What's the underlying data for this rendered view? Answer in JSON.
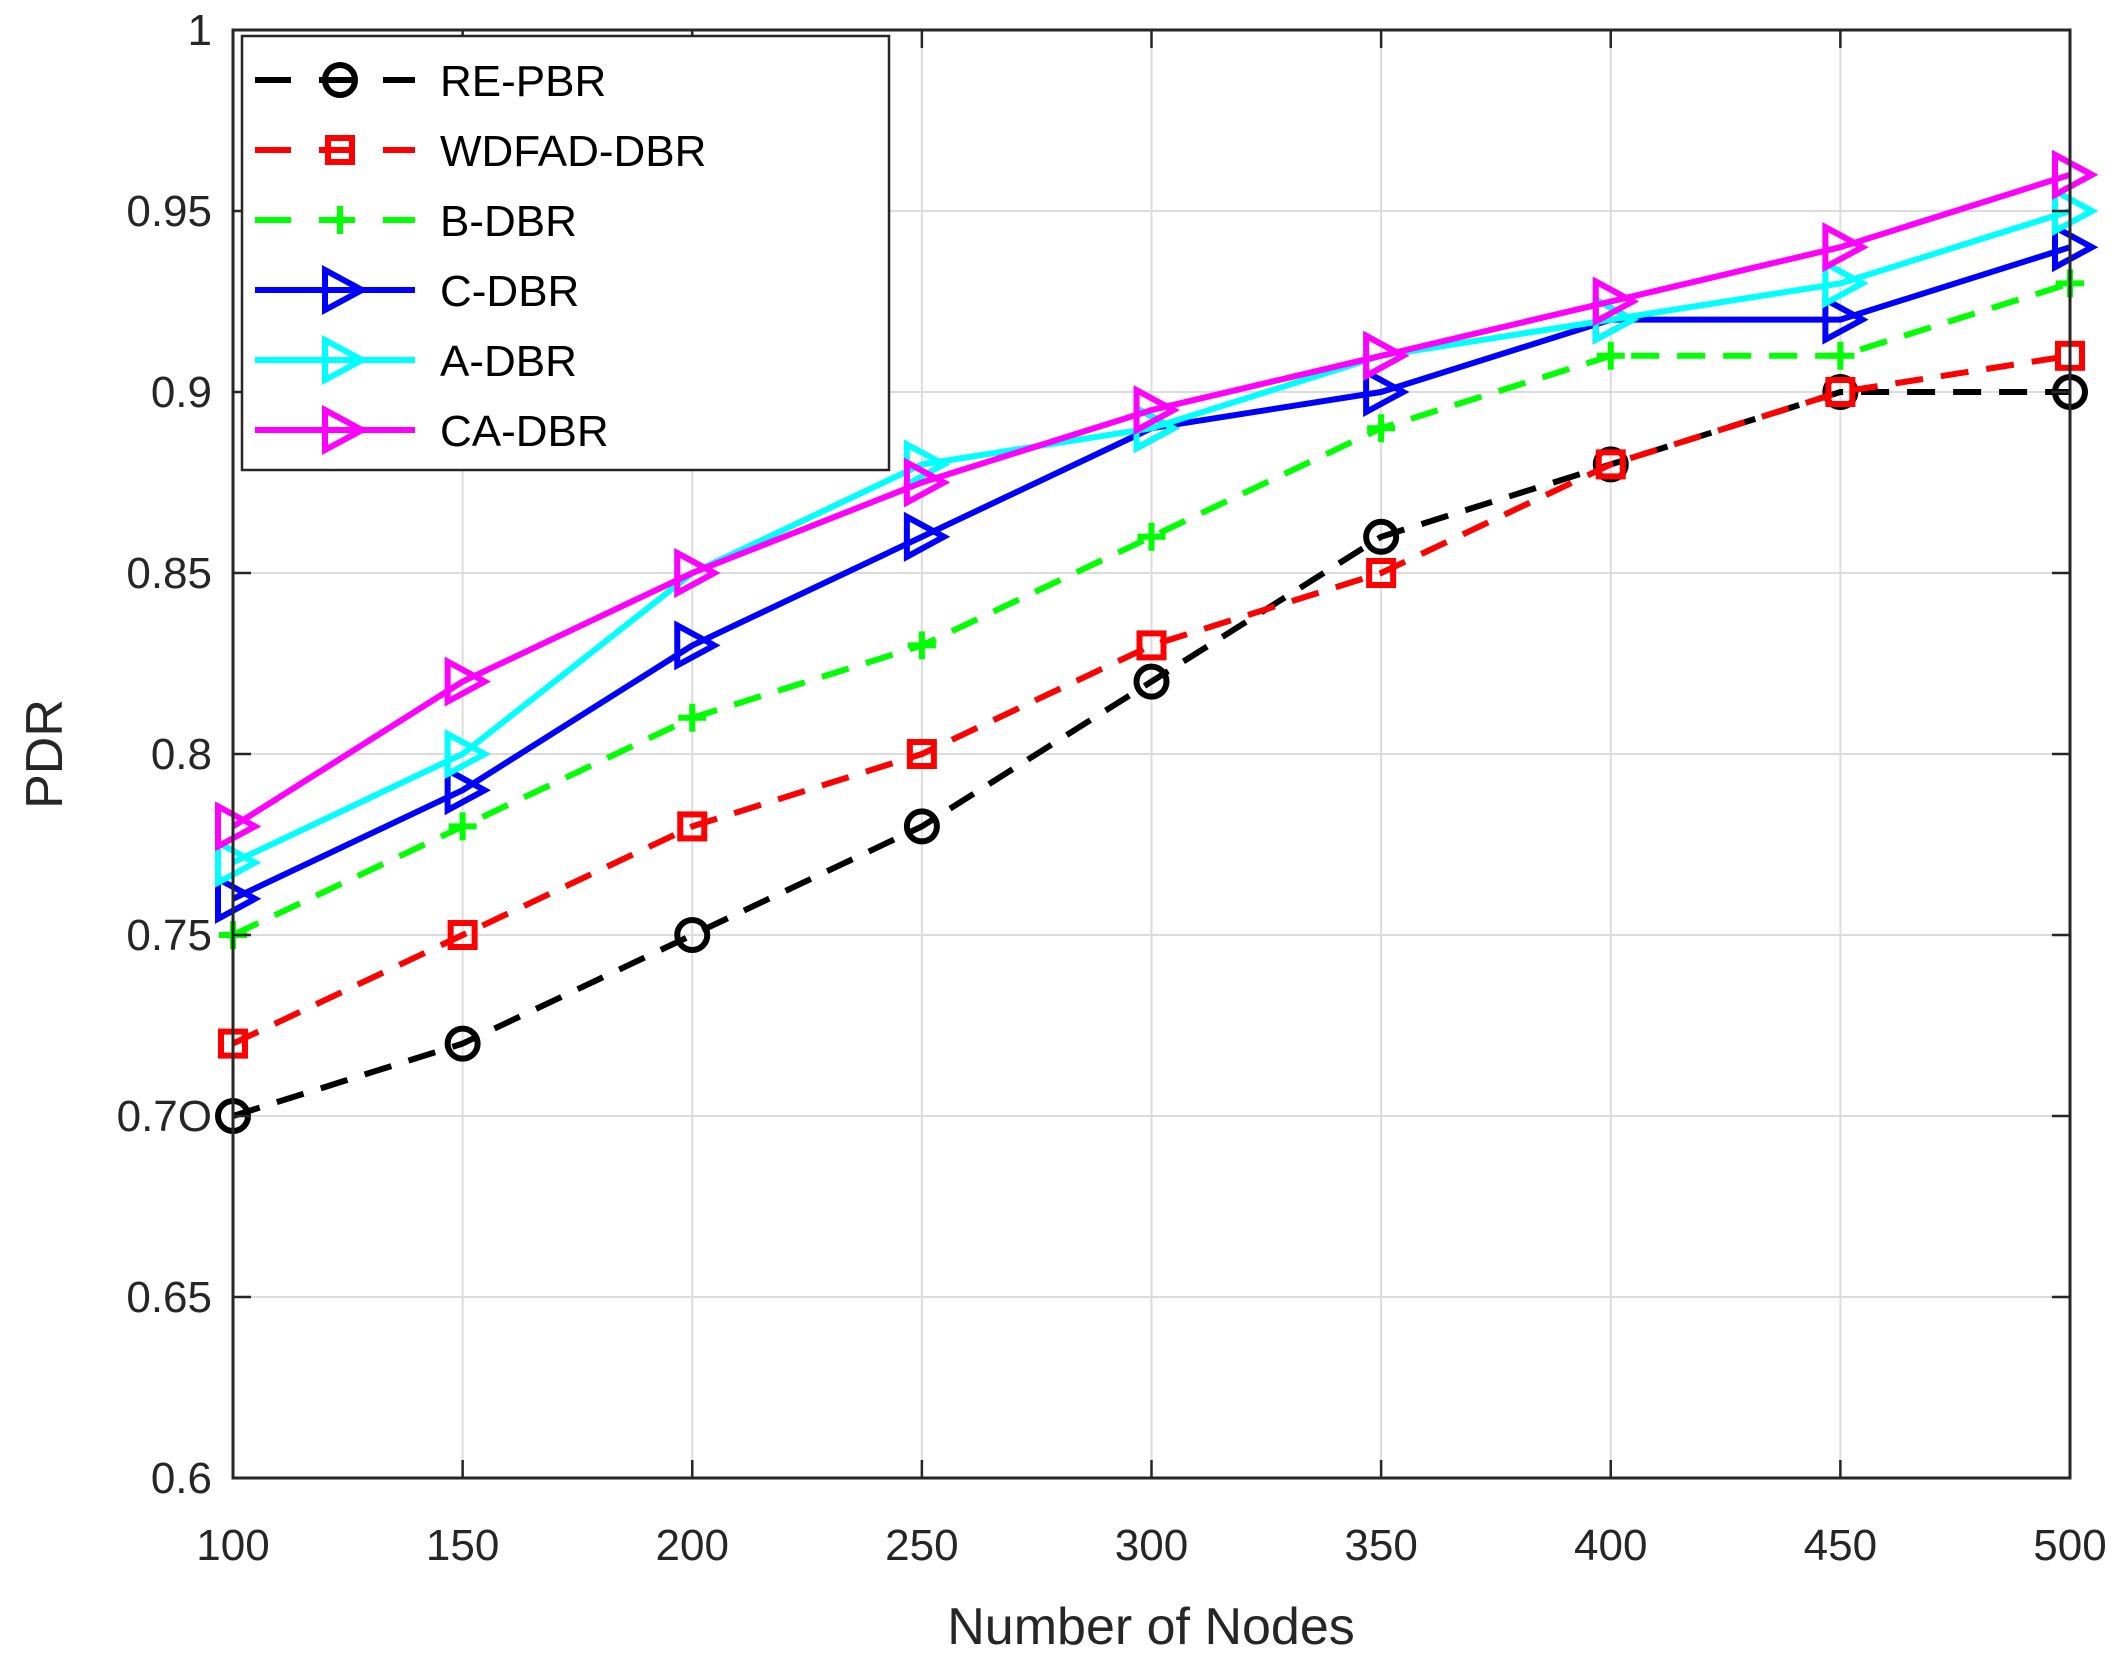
{
  "chart_data": {
    "type": "line",
    "title": "",
    "xlabel": "Number of Nodes",
    "ylabel": "PDR",
    "x": [
      100,
      150,
      200,
      250,
      300,
      350,
      400,
      450,
      500
    ],
    "xlim": [
      100,
      500
    ],
    "ylim": [
      0.6,
      1.0
    ],
    "xticks": [
      100,
      150,
      200,
      250,
      300,
      350,
      400,
      450,
      500
    ],
    "xtick_labels": [
      "100",
      "150",
      "200",
      "250",
      "300",
      "350",
      "400",
      "450",
      "500"
    ],
    "yticks": [
      0.6,
      0.65,
      0.7,
      0.75,
      0.8,
      0.85,
      0.9,
      0.95,
      1.0
    ],
    "ytick_labels": [
      "0.6",
      "0.65",
      "0.7O",
      "0.75",
      "0.8",
      "0.85",
      "0.9",
      "0.95",
      "1"
    ],
    "grid": true,
    "legend_position": "top-left",
    "series": [
      {
        "name": "RE-PBR",
        "color": "#000000",
        "dash": "dashed",
        "marker": "circle",
        "values": [
          0.7,
          0.72,
          0.75,
          0.78,
          0.82,
          0.86,
          0.88,
          0.9,
          0.9
        ]
      },
      {
        "name": "WDFAD-DBR",
        "color": "#ff0000",
        "dash": "dashed",
        "marker": "square",
        "values": [
          0.72,
          0.75,
          0.78,
          0.8,
          0.83,
          0.85,
          0.88,
          0.9,
          0.91
        ]
      },
      {
        "name": "B-DBR",
        "color": "#00ff00",
        "dash": "dashed",
        "marker": "plus",
        "values": [
          0.75,
          0.78,
          0.81,
          0.83,
          0.86,
          0.89,
          0.91,
          0.91,
          0.93
        ]
      },
      {
        "name": "C-DBR",
        "color": "#0000ff",
        "dash": "solid",
        "marker": "triangle-right",
        "values": [
          0.76,
          0.79,
          0.83,
          0.86,
          0.89,
          0.9,
          0.92,
          0.92,
          0.94
        ]
      },
      {
        "name": "A-DBR",
        "color": "#00ffff",
        "dash": "solid",
        "marker": "triangle-right",
        "values": [
          0.77,
          0.8,
          0.85,
          0.88,
          0.89,
          0.91,
          0.92,
          0.93,
          0.95
        ]
      },
      {
        "name": "CA-DBR",
        "color": "#ff00ff",
        "dash": "solid",
        "marker": "triangle-right",
        "values": [
          0.78,
          0.82,
          0.85,
          0.875,
          0.895,
          0.91,
          0.925,
          0.94,
          0.96
        ]
      }
    ]
  }
}
